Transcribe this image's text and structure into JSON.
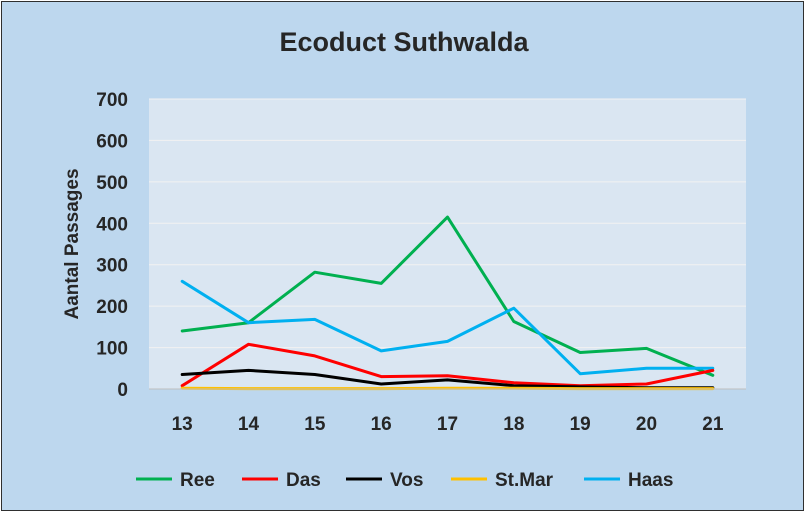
{
  "chart_data": {
    "type": "line",
    "title": "Ecoduct Suthwalda",
    "xlabel": "",
    "ylabel": "Aantal Passages",
    "categories": [
      "13",
      "14",
      "15",
      "16",
      "17",
      "18",
      "19",
      "20",
      "21"
    ],
    "ylim": [
      0,
      700
    ],
    "yticks": [
      "0",
      "100",
      "200",
      "300",
      "400",
      "500",
      "600",
      "700"
    ],
    "grid": true,
    "legend_position": "bottom",
    "series": [
      {
        "name": "Ree",
        "color": "#00b050",
        "values": [
          140,
          160,
          282,
          255,
          415,
          163,
          88,
          98,
          33
        ]
      },
      {
        "name": "Das",
        "color": "#ff0000",
        "values": [
          8,
          108,
          80,
          30,
          32,
          15,
          8,
          12,
          45
        ]
      },
      {
        "name": "Vos",
        "color": "#000000",
        "values": [
          35,
          45,
          35,
          12,
          22,
          8,
          5,
          3,
          3
        ]
      },
      {
        "name": "St.Mar",
        "color": "#ffc000",
        "values": [
          2,
          1,
          1,
          1,
          2,
          2,
          1,
          1,
          1
        ]
      },
      {
        "name": "Haas",
        "color": "#00b0f0",
        "values": [
          260,
          160,
          168,
          92,
          115,
          195,
          37,
          50,
          50
        ]
      }
    ],
    "colors": {
      "background": "#bdd7ee",
      "plot_area": "#dae6f2",
      "gridline": "#f2f2f2",
      "text": "#262626"
    }
  }
}
